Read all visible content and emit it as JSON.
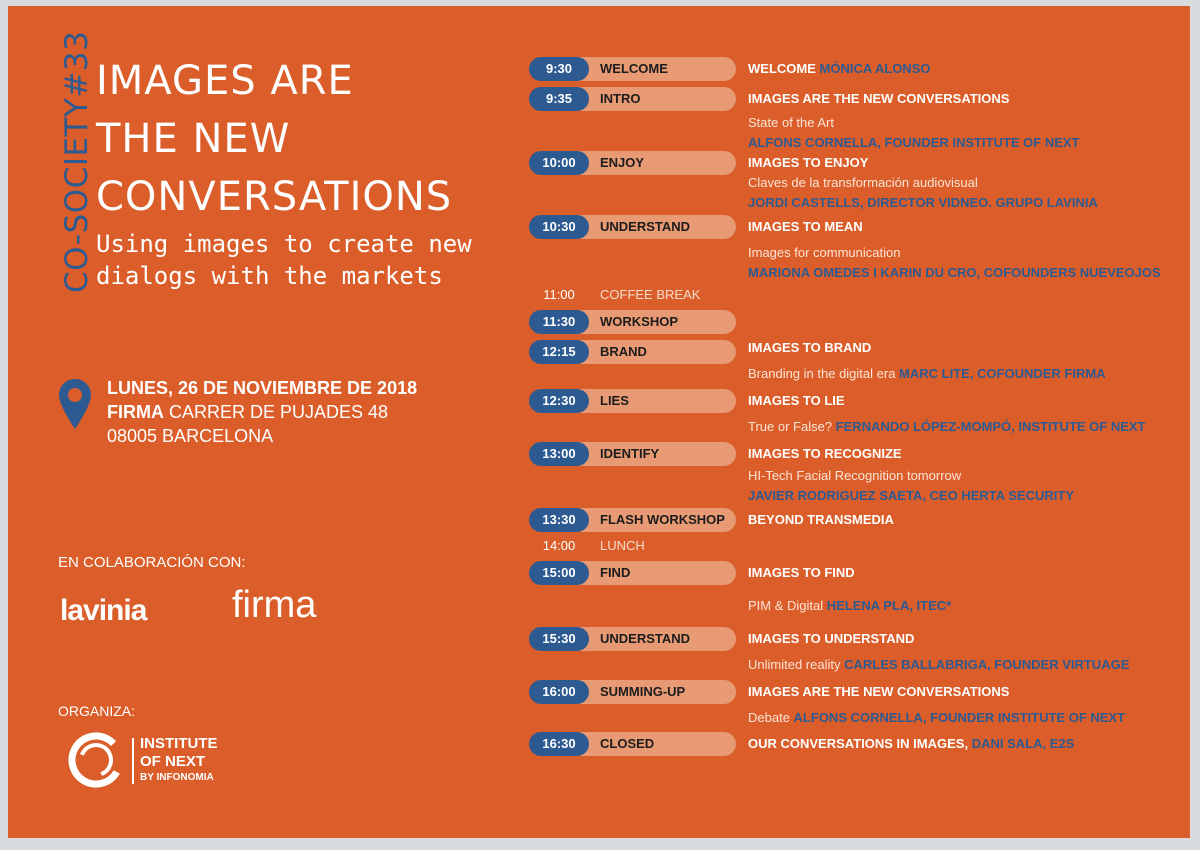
{
  "series_label": "CO-SOCIETY#33",
  "title_lines": [
    "IMAGES ARE",
    "THE NEW",
    "CONVERSATIONS"
  ],
  "subtitle_lines": [
    "Using images to create new",
    "dialogs with the markets"
  ],
  "venue": {
    "date": "LUNES, 26 DE NOVIEMBRE DE 2018",
    "place_name": "FIRMA",
    "street": " CARRER DE PUJADES 48",
    "city": "08005 BARCELONA"
  },
  "collab_label": "EN COLABORACIÓN CON:",
  "partners": {
    "lavinia": "lavinia",
    "firma": "firma"
  },
  "organiza_label": "ORGANIZA:",
  "organizer": {
    "line1": "INSTITUTE",
    "line2": "OF NEXT",
    "line3": "BY INFONOMIA"
  },
  "colors": {
    "background": "#db5e2a",
    "accent_blue": "#2d5a91",
    "pill_light": "#e79a73"
  },
  "icons": [
    "location-pin-icon",
    "institute-swirl-logo-icon"
  ],
  "schedule": [
    {
      "time": "9:30",
      "label": "WELCOME"
    },
    {
      "time": "9:35",
      "label": "INTRO"
    },
    {
      "time": "10:00",
      "label": "ENJOY"
    },
    {
      "time": "10:30",
      "label": "UNDERSTAND"
    },
    {
      "time": "11:00",
      "label": "COFFEE BREAK"
    },
    {
      "time": "11:30",
      "label": "WORKSHOP"
    },
    {
      "time": "12:15",
      "label": "BRAND"
    },
    {
      "time": "12:30",
      "label": "LIES"
    },
    {
      "time": "13:00",
      "label": "IDENTIFY"
    },
    {
      "time": "13:30",
      "label": "FLASH WORKSHOP"
    },
    {
      "time": "14:00",
      "label": "LUNCH"
    },
    {
      "time": "15:00",
      "label": "FIND"
    },
    {
      "time": "15:30",
      "label": "UNDERSTAND"
    },
    {
      "time": "16:00",
      "label": "SUMMING-UP"
    },
    {
      "time": "16:30",
      "label": "CLOSED"
    }
  ],
  "details": {
    "welcome": {
      "title": "WELCOME ",
      "speaker": "MÒNICA ALONSO"
    },
    "intro": {
      "title": "IMAGES ARE THE NEW CONVERSATIONS",
      "desc": "State of the Art",
      "speaker": "ALFONS CORNELLA, FOUNDER INSTITUTE OF NEXT"
    },
    "enjoy": {
      "title": "IMAGES TO ENJOY",
      "desc": "Claves de la transformación audiovisual",
      "speaker": "JORDI CASTELLS, DIRECTOR VIDNEO. GRUPO LAVINIA"
    },
    "mean": {
      "title": "IMAGES TO MEAN",
      "desc": "Images for communication",
      "speaker": "MARIONA OMEDES I KARIN DU CRO, COFOUNDERS NUEVEOJOS"
    },
    "brand": {
      "title": "IMAGES TO BRAND",
      "desc": "Branding in the digital era ",
      "speaker": "MARC LITE, COFOUNDER FIRMA"
    },
    "lie": {
      "title": "IMAGES TO LIE",
      "desc": "True or False? ",
      "speaker": "FERNANDO LÓPEZ-MOMPÓ, INSTITUTE OF NEXT"
    },
    "recognize": {
      "title": "IMAGES TO RECOGNIZE",
      "desc": "HI-Tech Facial Recognition tomorrow",
      "speaker": "JAVIER RODRIGUEZ SAETA, CEO HERTA SECURITY"
    },
    "transmedia": {
      "title": "BEYOND TRANSMEDIA"
    },
    "find": {
      "title": "IMAGES TO FIND",
      "desc": "PIM & Digital  ",
      "speaker": "HELENA PLA, ITEC*"
    },
    "understand": {
      "title": "IMAGES TO UNDERSTAND",
      "desc": "Unlimited reality  ",
      "speaker": "CARLES BALLABRIGA, FOUNDER VIRTUAGE"
    },
    "summing": {
      "title": "IMAGES ARE THE NEW CONVERSATIONS",
      "desc": "Debate ",
      "speaker": "ALFONS CORNELLA, FOUNDER INSTITUTE OF NEXT"
    },
    "closed": {
      "title": "OUR CONVERSATIONS IN IMAGES",
      "sep": ", ",
      "speaker": "DANI SALA, E2S"
    }
  }
}
